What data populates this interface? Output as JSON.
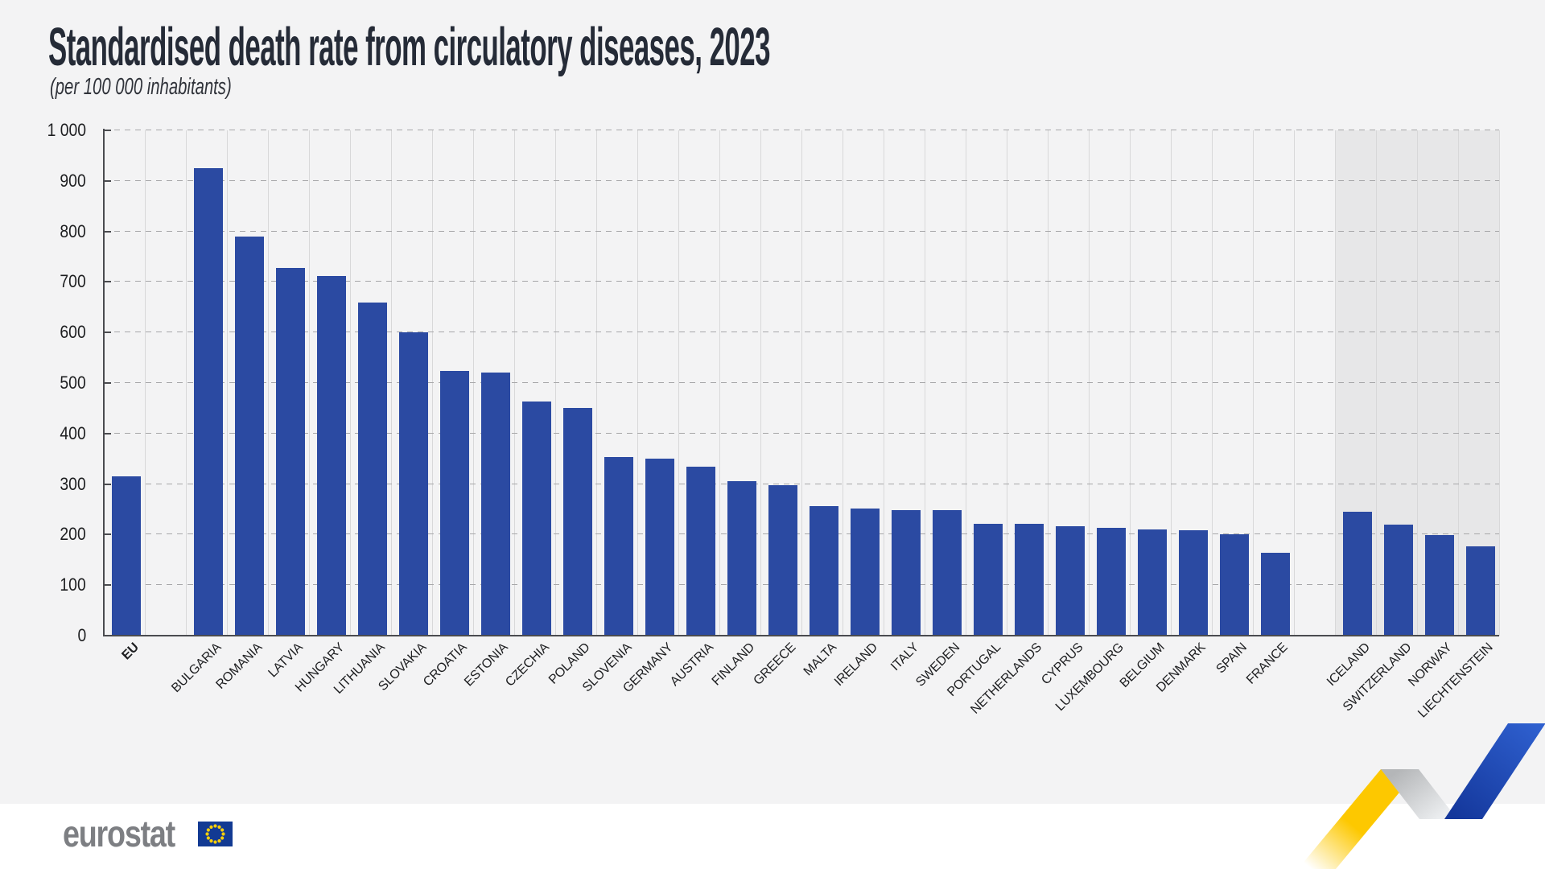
{
  "header": {
    "title": "Standardised death rate from circulatory diseases, 2023",
    "subtitle": "(per 100 000 inhabitants)"
  },
  "chart_data": {
    "type": "bar",
    "title": "Standardised death rate from circulatory diseases, 2023",
    "subtitle": "(per 100 000 inhabitants)",
    "categories": [
      "EU",
      "BULGARIA",
      "ROMANIA",
      "LATVIA",
      "HUNGARY",
      "LITHUANIA",
      "SLOVAKIA",
      "CROATIA",
      "ESTONIA",
      "CZECHIA",
      "POLAND",
      "SLOVENIA",
      "GERMANY",
      "AUSTRIA",
      "FINLAND",
      "GREECE",
      "MALTA",
      "IRELAND",
      "ITALY",
      "SWEDEN",
      "PORTUGAL",
      "NETHERLANDS",
      "CYPRUS",
      "LUXEMBOURG",
      "BELGIUM",
      "DENMARK",
      "SPAIN",
      "FRANCE",
      "ICELAND",
      "SWITZERLAND",
      "NORWAY",
      "LIECHTENSTEIN"
    ],
    "values": [
      315,
      925,
      790,
      728,
      712,
      660,
      601,
      524,
      521,
      463,
      451,
      353,
      350,
      335,
      306,
      298,
      256,
      252,
      249,
      248,
      222,
      221,
      216,
      213,
      210,
      208,
      201,
      164,
      246,
      220,
      199,
      176
    ],
    "groups": [
      "eu",
      "members",
      "members",
      "members",
      "members",
      "members",
      "members",
      "members",
      "members",
      "members",
      "members",
      "members",
      "members",
      "members",
      "members",
      "members",
      "members",
      "members",
      "members",
      "members",
      "members",
      "members",
      "members",
      "members",
      "members",
      "members",
      "members",
      "members",
      "efta",
      "efta",
      "efta",
      "efta"
    ],
    "xlabel": "",
    "ylabel": "",
    "ylim": [
      0,
      1000
    ],
    "ytick_interval": 100,
    "yticks": [
      0,
      100,
      200,
      300,
      400,
      500,
      600,
      700,
      800,
      900,
      1000
    ],
    "ytick_labels": [
      "0",
      "100",
      "200",
      "300",
      "400",
      "500",
      "600",
      "700",
      "800",
      "900",
      "1 000"
    ],
    "grid": "horizontal-dashed",
    "legend": "none",
    "xlabel_rotation_deg": -45
  },
  "branding": {
    "wordmark": "eurostat"
  },
  "colors": {
    "figure_bg": "#f3f3f4",
    "footer_bg": "#ffffff",
    "bar": "#2b4aa2",
    "efta_band": "#e7e7e8",
    "axis": "#4a4b4f",
    "gridline": "#a7a7a9",
    "slot_line": "#d8d8d9",
    "title_text": "#252b37",
    "label_text": "#1d1e20",
    "logo_gray": "#7d7f83",
    "flag_blue": "#123a93",
    "star_yellow": "#fccf0a",
    "ribbon_yellow": "#fdc800",
    "ribbon_blue_dark": "#14379b",
    "ribbon_blue_light": "#2e5fce",
    "ribbon_gray_dark": "#b4b6b8",
    "ribbon_gray_light": "#eceef0"
  }
}
